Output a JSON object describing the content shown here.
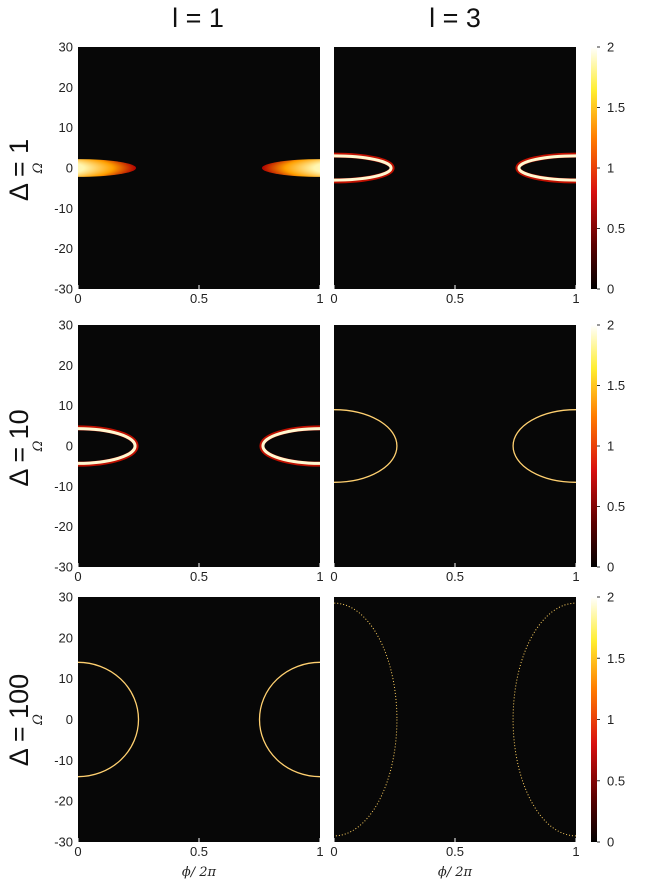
{
  "figure": {
    "column_labels": [
      "l = 1",
      "l = 3"
    ],
    "row_labels": [
      "Δ = 1",
      "Δ = 10",
      "Δ = 100"
    ]
  },
  "colors": {
    "background": "#070707",
    "colormap": [
      "#000000",
      "#7a0000",
      "#e01010",
      "#ff8c00",
      "#ffff3a",
      "#ffffff"
    ]
  },
  "chart_data": [
    {
      "type": "heatmap",
      "panel": "l1-d1",
      "xlabel": "",
      "ylabel": "Ω",
      "xlim": [
        0,
        1
      ],
      "ylim": [
        -30,
        30
      ],
      "xticks": [
        "0",
        "0.5",
        "1"
      ],
      "yticks": [
        "30",
        "20",
        "10",
        "0",
        "-10",
        "-20",
        "-30"
      ],
      "feature": {
        "shape": "filled-lobe",
        "center_x": [
          0,
          1
        ],
        "x_extent": 0.24,
        "omega_half_width": 2.2,
        "peak": 2
      }
    },
    {
      "type": "heatmap",
      "panel": "l3-d1",
      "xlabel": "",
      "ylabel": "",
      "xlim": [
        0,
        1
      ],
      "ylim": [
        -30,
        30
      ],
      "xticks": [
        "0",
        "0.5",
        "1"
      ],
      "yticks": [],
      "feature": {
        "shape": "thick-ring",
        "center_x": [
          0,
          1
        ],
        "x_extent": 0.24,
        "omega_half_width": 3.2,
        "peak": 2
      },
      "colorbar": {
        "range": [
          0,
          2
        ],
        "ticks": [
          "2",
          "1.5",
          "1",
          "0.5",
          "0"
        ]
      }
    },
    {
      "type": "heatmap",
      "panel": "l1-d10",
      "xlabel": "",
      "ylabel": "Ω",
      "xlim": [
        0,
        1
      ],
      "ylim": [
        -30,
        30
      ],
      "xticks": [
        "0",
        "0.5",
        "1"
      ],
      "yticks": [
        "30",
        "20",
        "10",
        "0",
        "-10",
        "-20",
        "-30"
      ],
      "feature": {
        "shape": "thick-ring",
        "center_x": [
          0,
          1
        ],
        "x_extent": 0.24,
        "omega_half_width": 4.5,
        "peak": 2
      }
    },
    {
      "type": "heatmap",
      "panel": "l3-d10",
      "xlabel": "",
      "ylabel": "",
      "xlim": [
        0,
        1
      ],
      "ylim": [
        -30,
        30
      ],
      "xticks": [
        "0",
        "0.5",
        "1"
      ],
      "yticks": [],
      "feature": {
        "shape": "thin-ring",
        "center_x": [
          0,
          1
        ],
        "x_extent": 0.26,
        "omega_half_width": 9,
        "peak": 2
      },
      "colorbar": {
        "range": [
          0,
          2
        ],
        "ticks": [
          "2",
          "1.5",
          "1",
          "0.5",
          "0"
        ]
      }
    },
    {
      "type": "heatmap",
      "panel": "l1-d100",
      "xlabel": "ϕ/ 2π",
      "ylabel": "Ω",
      "xlim": [
        0,
        1
      ],
      "ylim": [
        -30,
        30
      ],
      "xticks": [
        "0",
        "0.5",
        "1"
      ],
      "yticks": [
        "30",
        "20",
        "10",
        "0",
        "-10",
        "-20",
        "-30"
      ],
      "feature": {
        "shape": "thin-ring",
        "center_x": [
          0,
          1
        ],
        "x_extent": 0.25,
        "omega_half_width": 14,
        "peak": 2
      }
    },
    {
      "type": "heatmap",
      "panel": "l3-d100",
      "xlabel": "ϕ/ 2π",
      "ylabel": "",
      "xlim": [
        0,
        1
      ],
      "ylim": [
        -30,
        30
      ],
      "xticks": [
        "0",
        "0.5",
        "1"
      ],
      "yticks": [],
      "feature": {
        "shape": "dotted-ring",
        "center_x": [
          0,
          1
        ],
        "x_extent": 0.26,
        "omega_half_width": 28.5,
        "peak": 2
      },
      "colorbar": {
        "range": [
          0,
          2
        ],
        "ticks": [
          "2",
          "1.5",
          "1",
          "0.5",
          "0"
        ]
      }
    }
  ]
}
